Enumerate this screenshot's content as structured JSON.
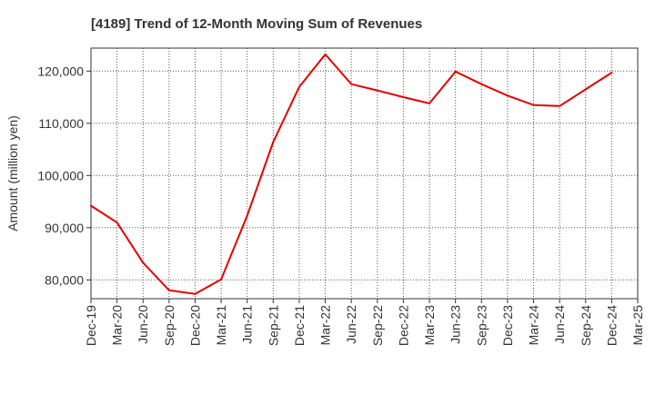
{
  "chart_data": {
    "type": "line",
    "title": "[4189]  Trend of 12-Month Moving Sum of Revenues",
    "ylabel": "Amount (million yen)",
    "xlabel": "",
    "ylim": [
      76400,
      124400
    ],
    "yticks": [
      80000,
      90000,
      100000,
      110000,
      120000
    ],
    "ytick_labels": [
      "80,000",
      "90,000",
      "100,000",
      "110,000",
      "120,000"
    ],
    "categories": [
      "Dec-19",
      "Mar-20",
      "Jun-20",
      "Sep-20",
      "Dec-20",
      "Mar-21",
      "Jun-21",
      "Sep-21",
      "Dec-21",
      "Mar-22",
      "Jun-22",
      "Sep-22",
      "Dec-22",
      "Mar-23",
      "Jun-23",
      "Sep-23",
      "Dec-23",
      "Mar-24",
      "Jun-24",
      "Sep-24",
      "Dec-24",
      "Mar-25"
    ],
    "grid": true,
    "series": [
      {
        "color": "#e60000",
        "values": [
          94200,
          91000,
          83300,
          78000,
          77300,
          80100,
          92300,
          106400,
          117000,
          123200,
          117500,
          116300,
          115000,
          113800,
          119900,
          117500,
          115300,
          113500,
          113300,
          116500,
          119700,
          null
        ]
      }
    ]
  }
}
